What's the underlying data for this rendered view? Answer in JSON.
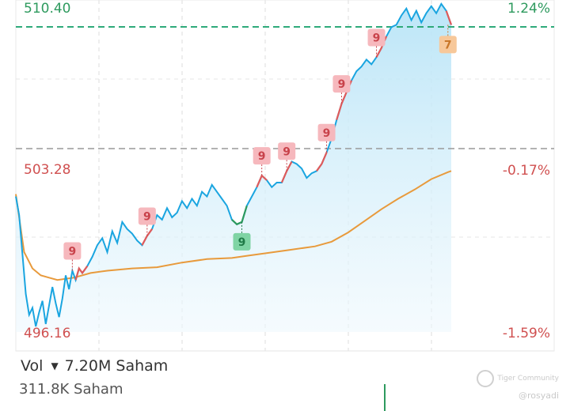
{
  "chart_data": {
    "type": "line",
    "y_top_label": "510.40",
    "y_mid_label": "503.28",
    "y_bottom_label": "496.16",
    "pct_top_label": "1.24%",
    "pct_mid_label": "-0.17%",
    "pct_bottom_label": "-1.59%",
    "ylim": [
      496.16,
      510.4
    ],
    "previous_close": 504.1,
    "reference_high": 509.3,
    "grid": true,
    "series": [
      {
        "key": "price",
        "color": "#1aa5e0",
        "up_color": "#e05a5a",
        "down_color": "#2e9a5e",
        "values": [
          [
            0,
            502.0
          ],
          [
            0.4,
            501.2
          ],
          [
            0.8,
            499.5
          ],
          [
            1.2,
            497.8
          ],
          [
            1.6,
            496.9
          ],
          [
            2.0,
            497.2
          ],
          [
            2.4,
            496.4
          ],
          [
            2.8,
            497.0
          ],
          [
            3.2,
            497.5
          ],
          [
            3.6,
            496.5
          ],
          [
            4.0,
            497.3
          ],
          [
            4.4,
            498.1
          ],
          [
            4.8,
            497.4
          ],
          [
            5.2,
            496.8
          ],
          [
            5.6,
            497.6
          ],
          [
            6.0,
            498.6
          ],
          [
            6.4,
            498.0
          ],
          [
            6.8,
            498.8
          ],
          [
            7.2,
            498.4
          ],
          [
            7.6,
            498.9
          ],
          [
            8.0,
            498.7
          ],
          [
            8.6,
            499.0
          ],
          [
            9.2,
            499.4
          ],
          [
            9.8,
            499.9
          ],
          [
            10.4,
            500.2
          ],
          [
            11.0,
            499.6
          ],
          [
            11.6,
            500.5
          ],
          [
            12.2,
            500.0
          ],
          [
            12.8,
            500.9
          ],
          [
            13.4,
            500.6
          ],
          [
            14.0,
            500.4
          ],
          [
            14.6,
            500.1
          ],
          [
            15.2,
            499.9
          ],
          [
            15.8,
            500.3
          ],
          [
            16.4,
            500.6
          ],
          [
            17.0,
            501.2
          ],
          [
            17.6,
            501.0
          ],
          [
            18.2,
            501.5
          ],
          [
            18.8,
            501.1
          ],
          [
            19.4,
            501.3
          ],
          [
            20.0,
            501.8
          ],
          [
            20.6,
            501.5
          ],
          [
            21.2,
            501.9
          ],
          [
            21.8,
            501.6
          ],
          [
            22.4,
            502.2
          ],
          [
            23.0,
            502.0
          ],
          [
            23.6,
            502.5
          ],
          [
            24.2,
            502.2
          ],
          [
            24.8,
            501.9
          ],
          [
            25.4,
            501.6
          ],
          [
            26.0,
            501.0
          ],
          [
            26.6,
            500.8
          ],
          [
            27.2,
            500.9
          ],
          [
            27.8,
            501.6
          ],
          [
            28.4,
            502.0
          ],
          [
            29.0,
            502.4
          ],
          [
            29.6,
            502.9
          ],
          [
            30.2,
            502.7
          ],
          [
            30.8,
            502.4
          ],
          [
            31.4,
            502.6
          ],
          [
            32.0,
            502.6
          ],
          [
            32.6,
            503.1
          ],
          [
            33.2,
            503.5
          ],
          [
            33.8,
            503.4
          ],
          [
            34.4,
            503.2
          ],
          [
            35.0,
            502.8
          ],
          [
            35.6,
            503.0
          ],
          [
            36.2,
            503.1
          ],
          [
            36.8,
            503.4
          ],
          [
            37.4,
            503.9
          ],
          [
            38.0,
            504.5
          ],
          [
            38.6,
            505.3
          ],
          [
            39.2,
            506.0
          ],
          [
            39.8,
            506.5
          ],
          [
            40.4,
            507.0
          ],
          [
            41.0,
            507.4
          ],
          [
            41.6,
            507.6
          ],
          [
            42.2,
            507.9
          ],
          [
            42.8,
            507.7
          ],
          [
            43.4,
            508.0
          ],
          [
            44.0,
            508.4
          ],
          [
            44.6,
            508.9
          ],
          [
            45.2,
            509.3
          ],
          [
            45.8,
            509.4
          ],
          [
            46.4,
            509.8
          ],
          [
            47.0,
            510.1
          ],
          [
            47.6,
            509.6
          ],
          [
            48.2,
            510.0
          ],
          [
            48.8,
            509.5
          ],
          [
            49.4,
            509.9
          ],
          [
            50.0,
            510.2
          ],
          [
            50.6,
            509.9
          ],
          [
            51.2,
            510.3
          ],
          [
            51.8,
            510.0
          ],
          [
            52.4,
            509.4
          ]
        ]
      },
      {
        "key": "avg",
        "color": "#e89a3c",
        "values": [
          [
            0,
            502.1
          ],
          [
            1.0,
            499.6
          ],
          [
            2.0,
            498.9
          ],
          [
            3.0,
            498.6
          ],
          [
            4.0,
            498.5
          ],
          [
            5.0,
            498.4
          ],
          [
            7.0,
            498.5
          ],
          [
            9.0,
            498.7
          ],
          [
            11.0,
            498.8
          ],
          [
            14.0,
            498.9
          ],
          [
            17.0,
            498.95
          ],
          [
            20.0,
            499.15
          ],
          [
            23.0,
            499.3
          ],
          [
            26.0,
            499.35
          ],
          [
            28.0,
            499.45
          ],
          [
            30.0,
            499.55
          ],
          [
            33.0,
            499.7
          ],
          [
            36.0,
            499.85
          ],
          [
            38.0,
            500.05
          ],
          [
            40.0,
            500.45
          ],
          [
            42.0,
            500.95
          ],
          [
            44.0,
            501.45
          ],
          [
            46.0,
            501.9
          ],
          [
            48.0,
            502.3
          ],
          [
            50.0,
            502.75
          ],
          [
            52.0,
            503.05
          ],
          [
            52.4,
            503.1
          ]
        ]
      }
    ],
    "markers": [
      {
        "label": "9",
        "x": 6.8,
        "y": 498.8,
        "kind": "up"
      },
      {
        "label": "9",
        "x": 15.8,
        "y": 500.3,
        "kind": "up"
      },
      {
        "label": "9",
        "x": 27.2,
        "y": 500.9,
        "kind": "down"
      },
      {
        "label": "9",
        "x": 29.6,
        "y": 502.9,
        "kind": "up"
      },
      {
        "label": "9",
        "x": 32.6,
        "y": 503.1,
        "kind": "up"
      },
      {
        "label": "9",
        "x": 37.4,
        "y": 503.9,
        "kind": "up"
      },
      {
        "label": "9",
        "x": 39.2,
        "y": 506.0,
        "kind": "up"
      },
      {
        "label": "9",
        "x": 43.4,
        "y": 508.0,
        "kind": "up"
      },
      {
        "label": "7",
        "x": 52.0,
        "y": 509.4,
        "kind": "last"
      }
    ]
  },
  "volume": {
    "label": "Vol",
    "value": "7.20M Saham",
    "sub_value": "311.8K Saham"
  },
  "watermark": {
    "brand": "Tiger Community",
    "user": "@rosyadi"
  },
  "colors": {
    "up": "#e05a5a",
    "down": "#2e9a5e",
    "price_line": "#1aa5e0",
    "avg_line": "#e89a3c",
    "high_line": "#2eaa7a",
    "prev_close_line": "#999999"
  }
}
